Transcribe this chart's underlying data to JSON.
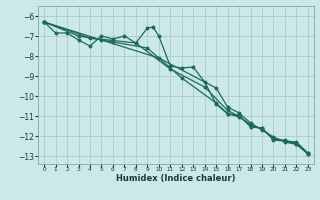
{
  "xlabel": "Humidex (Indice chaleur)",
  "ylabel": "",
  "background_color": "#cce8e8",
  "grid_color": "#aacccc",
  "line_color": "#1a6b5a",
  "xlim": [
    -0.5,
    23.5
  ],
  "ylim": [
    -13.4,
    -5.5
  ],
  "yticks": [
    -6,
    -7,
    -8,
    -9,
    -10,
    -11,
    -12,
    -13
  ],
  "xticks": [
    0,
    1,
    2,
    3,
    4,
    5,
    6,
    7,
    8,
    9,
    10,
    11,
    12,
    13,
    14,
    15,
    16,
    17,
    18,
    19,
    20,
    21,
    22,
    23
  ],
  "series": [
    [
      0,
      -6.3
    ],
    [
      1,
      -6.85
    ],
    [
      2,
      -6.85
    ],
    [
      3,
      -7.2
    ],
    [
      4,
      -7.5
    ],
    [
      5,
      -7.0
    ],
    [
      6,
      -7.15
    ],
    [
      7,
      -7.0
    ],
    [
      8,
      -7.35
    ],
    [
      9,
      -6.6
    ],
    [
      9.5,
      -6.55
    ],
    [
      10,
      -7.0
    ],
    [
      11,
      -8.5
    ],
    [
      12,
      -8.6
    ],
    [
      13,
      -8.55
    ],
    [
      14,
      -9.3
    ],
    [
      15,
      -10.4
    ],
    [
      16,
      -10.9
    ],
    [
      17,
      -10.95
    ],
    [
      18,
      -11.55
    ],
    [
      19,
      -11.6
    ],
    [
      20,
      -12.2
    ],
    [
      21,
      -12.25
    ],
    [
      22,
      -12.3
    ],
    [
      23,
      -12.85
    ]
  ],
  "series2": [
    [
      0,
      -6.3
    ],
    [
      5,
      -7.2
    ],
    [
      10,
      -8.1
    ],
    [
      15,
      -9.6
    ],
    [
      16,
      -10.55
    ],
    [
      17,
      -10.85
    ],
    [
      18,
      -11.35
    ],
    [
      19,
      -11.7
    ],
    [
      20,
      -12.05
    ],
    [
      21,
      -12.3
    ],
    [
      22,
      -12.42
    ],
    [
      23,
      -12.9
    ]
  ],
  "series3": [
    [
      0,
      -6.3
    ],
    [
      3,
      -7.0
    ],
    [
      6,
      -7.3
    ],
    [
      9,
      -7.6
    ],
    [
      12,
      -9.1
    ],
    [
      15,
      -10.35
    ],
    [
      16,
      -10.88
    ],
    [
      17,
      -11.05
    ],
    [
      18,
      -11.42
    ],
    [
      19,
      -11.67
    ],
    [
      20,
      -12.12
    ],
    [
      21,
      -12.22
    ],
    [
      22,
      -12.36
    ],
    [
      23,
      -12.88
    ]
  ],
  "series4": [
    [
      0,
      -6.3
    ],
    [
      4,
      -7.1
    ],
    [
      8,
      -7.35
    ],
    [
      11,
      -8.65
    ],
    [
      14,
      -9.55
    ],
    [
      16,
      -10.72
    ],
    [
      17,
      -11.02
    ],
    [
      18,
      -11.48
    ],
    [
      19,
      -11.62
    ],
    [
      20,
      -12.16
    ],
    [
      21,
      -12.26
    ],
    [
      22,
      -12.39
    ],
    [
      23,
      -12.87
    ]
  ]
}
